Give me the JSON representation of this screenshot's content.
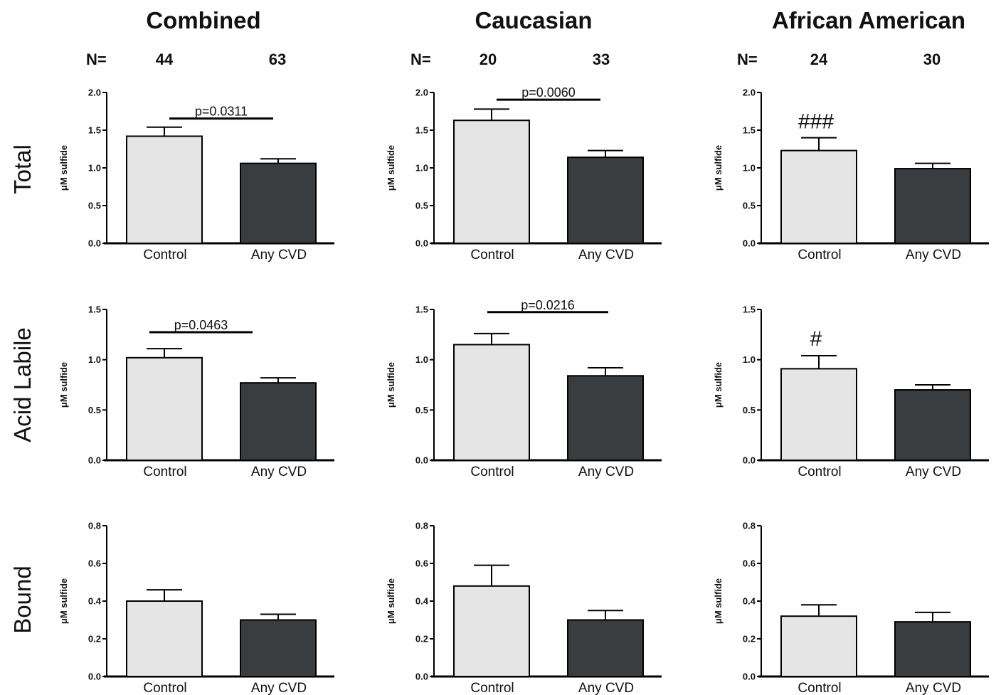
{
  "n_label": "N=",
  "columns": [
    {
      "title": "Combined",
      "n": [
        "44",
        "63"
      ]
    },
    {
      "title": "Caucasian",
      "n": [
        "20",
        "33"
      ]
    },
    {
      "title": "African American",
      "n": [
        "24",
        "30"
      ]
    }
  ],
  "rows": [
    "Total",
    "Acid Labile",
    "Bound"
  ],
  "colors": {
    "control": "#e4e5e4",
    "any_cvd": "#3a3d40",
    "axis": "#000000"
  },
  "chart_data": [
    {
      "type": "bar",
      "column": "Combined",
      "row": "Total",
      "ylabel": "μM sulfide",
      "ylim": [
        0,
        2.0
      ],
      "yticks": [
        "0.0",
        "0.5",
        "1.0",
        "1.5",
        "2.0"
      ],
      "categories": [
        "Control",
        "Any CVD"
      ],
      "values": [
        1.42,
        1.06
      ],
      "errors": [
        0.12,
        0.06
      ],
      "annotation": {
        "text": "p=0.0311",
        "type": "bracket",
        "y": 1.73
      }
    },
    {
      "type": "bar",
      "column": "Caucasian",
      "row": "Total",
      "ylabel": "μM sulfide",
      "ylim": [
        0,
        2.0
      ],
      "yticks": [
        "0.0",
        "0.5",
        "1.0",
        "1.5",
        "2.0"
      ],
      "categories": [
        "Control",
        "Any CVD"
      ],
      "values": [
        1.63,
        1.14
      ],
      "errors": [
        0.15,
        0.09
      ],
      "annotation": {
        "text": "p=0.0060",
        "type": "bracket",
        "y": 1.98
      }
    },
    {
      "type": "bar",
      "column": "African American",
      "row": "Total",
      "ylabel": "μM sulfide",
      "ylim": [
        0,
        2.0
      ],
      "yticks": [
        "0.0",
        "0.5",
        "1.0",
        "1.5",
        "2.0"
      ],
      "categories": [
        "Control",
        "Any CVD"
      ],
      "values": [
        1.23,
        0.99
      ],
      "errors": [
        0.17,
        0.07
      ],
      "annotation": {
        "text": "###",
        "type": "mark",
        "y": 1.62
      }
    },
    {
      "type": "bar",
      "column": "Combined",
      "row": "Acid Labile",
      "ylabel": "μM sulfide",
      "ylim": [
        0,
        1.5
      ],
      "yticks": [
        "0.0",
        "0.5",
        "1.0",
        "1.5"
      ],
      "categories": [
        "Control",
        "Any CVD"
      ],
      "values": [
        1.02,
        0.77
      ],
      "errors": [
        0.09,
        0.05
      ],
      "annotation": {
        "text": "p=0.0463",
        "type": "bracket",
        "y": 1.33
      }
    },
    {
      "type": "bar",
      "column": "Caucasian",
      "row": "Acid Labile",
      "ylabel": "μM sulfide",
      "ylim": [
        0,
        1.5
      ],
      "yticks": [
        "0.0",
        "0.5",
        "1.0",
        "1.5"
      ],
      "categories": [
        "Control",
        "Any CVD"
      ],
      "values": [
        1.15,
        0.84
      ],
      "errors": [
        0.11,
        0.08
      ],
      "annotation": {
        "text": "p=0.0216",
        "type": "bracket",
        "y": 1.53
      }
    },
    {
      "type": "bar",
      "column": "African American",
      "row": "Acid Labile",
      "ylabel": "μM sulfide",
      "ylim": [
        0,
        1.5
      ],
      "yticks": [
        "0.0",
        "0.5",
        "1.0",
        "1.5"
      ],
      "categories": [
        "Control",
        "Any CVD"
      ],
      "values": [
        0.91,
        0.7
      ],
      "errors": [
        0.13,
        0.05
      ],
      "annotation": {
        "text": "#",
        "type": "mark",
        "y": 1.21
      }
    },
    {
      "type": "bar",
      "column": "Combined",
      "row": "Bound",
      "ylabel": "μM sulfide",
      "ylim": [
        0,
        0.8
      ],
      "yticks": [
        "0.0",
        "0.2",
        "0.4",
        "0.6",
        "0.8"
      ],
      "categories": [
        "Control",
        "Any CVD"
      ],
      "values": [
        0.4,
        0.3
      ],
      "errors": [
        0.06,
        0.03
      ],
      "annotation": null
    },
    {
      "type": "bar",
      "column": "Caucasian",
      "row": "Bound",
      "ylabel": "μM sulfide",
      "ylim": [
        0,
        0.8
      ],
      "yticks": [
        "0.0",
        "0.2",
        "0.4",
        "0.6",
        "0.8"
      ],
      "categories": [
        "Control",
        "Any CVD"
      ],
      "values": [
        0.48,
        0.3
      ],
      "errors": [
        0.11,
        0.05
      ],
      "annotation": null
    },
    {
      "type": "bar",
      "column": "African American",
      "row": "Bound",
      "ylabel": "μM sulfide",
      "ylim": [
        0,
        0.8
      ],
      "yticks": [
        "0.0",
        "0.2",
        "0.4",
        "0.6",
        "0.8"
      ],
      "categories": [
        "Control",
        "Any CVD"
      ],
      "values": [
        0.32,
        0.29
      ],
      "errors": [
        0.06,
        0.05
      ],
      "annotation": null
    }
  ]
}
